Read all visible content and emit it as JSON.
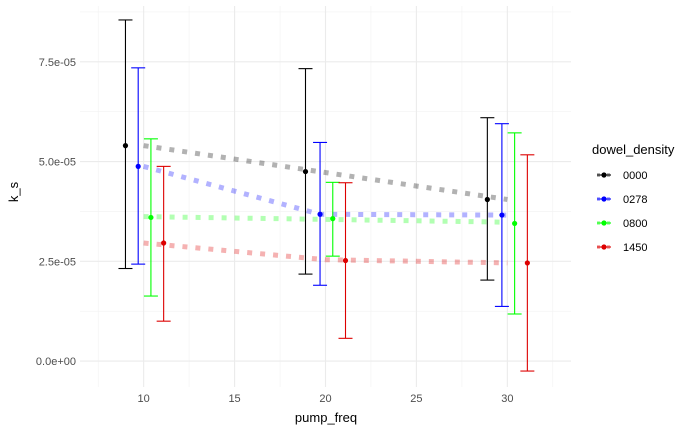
{
  "chart_data": {
    "type": "scatter",
    "xlabel": "pump_freq",
    "ylabel": "k_s",
    "xlim": [
      6.5,
      33.5
    ],
    "ylim": [
      -6.5e-06,
      8.9e-05
    ],
    "x_ticks": [
      10,
      15,
      20,
      25,
      30
    ],
    "x_tick_labels": [
      "10",
      "15",
      "20",
      "25",
      "30"
    ],
    "y_ticks": [
      0,
      2.5e-05,
      5e-05,
      7.5e-05
    ],
    "y_tick_labels": [
      "0.0e+00",
      "2.5e-05",
      "5.0e-05",
      "7.5e-05"
    ],
    "grid": true,
    "legend": {
      "title": "dowel_density",
      "position": "right"
    },
    "series": [
      {
        "name": "0000",
        "color": "#000000",
        "points": [
          {
            "x": 9,
            "y": 5.4e-05,
            "ymin": 2.32e-05,
            "ymax": 8.55e-05
          },
          {
            "x": 18.9,
            "y": 4.75e-05,
            "ymin": 2.18e-05,
            "ymax": 7.33e-05
          },
          {
            "x": 28.9,
            "y": 4.05e-05,
            "ymin": 2.03e-05,
            "ymax": 6.1e-05
          }
        ],
        "trend": [
          {
            "x": 10,
            "y": 5.4e-05
          },
          {
            "x": 30,
            "y": 4.05e-05
          }
        ]
      },
      {
        "name": "0278",
        "color": "#0000ff",
        "points": [
          {
            "x": 9.7,
            "y": 4.88e-05,
            "ymin": 2.43e-05,
            "ymax": 7.35e-05
          },
          {
            "x": 19.7,
            "y": 3.68e-05,
            "ymin": 1.9e-05,
            "ymax": 5.48e-05
          },
          {
            "x": 29.7,
            "y": 3.66e-05,
            "ymin": 1.37e-05,
            "ymax": 5.95e-05
          }
        ],
        "trend": [
          {
            "x": 10,
            "y": 4.88e-05
          },
          {
            "x": 19.7,
            "y": 3.68e-05
          },
          {
            "x": 30,
            "y": 3.66e-05
          }
        ]
      },
      {
        "name": "0800",
        "color": "#00ff00",
        "points": [
          {
            "x": 10.4,
            "y": 3.6e-05,
            "ymin": 1.63e-05,
            "ymax": 5.57e-05
          },
          {
            "x": 20.4,
            "y": 3.57e-05,
            "ymin": 2.63e-05,
            "ymax": 4.48e-05
          },
          {
            "x": 30.4,
            "y": 3.45e-05,
            "ymin": 1.18e-05,
            "ymax": 5.72e-05
          }
        ],
        "trend": [
          {
            "x": 10,
            "y": 3.62e-05
          },
          {
            "x": 30,
            "y": 3.48e-05
          }
        ]
      },
      {
        "name": "1450",
        "color": "#dd0000",
        "points": [
          {
            "x": 11.1,
            "y": 2.96e-05,
            "ymin": 1e-05,
            "ymax": 4.88e-05
          },
          {
            "x": 21.1,
            "y": 2.52e-05,
            "ymin": 5.7e-06,
            "ymax": 4.47e-05
          },
          {
            "x": 31.1,
            "y": 2.46e-05,
            "ymin": -2.5e-06,
            "ymax": 5.17e-05
          }
        ],
        "trend": [
          {
            "x": 10,
            "y": 2.96e-05
          },
          {
            "x": 20,
            "y": 2.54e-05
          },
          {
            "x": 30,
            "y": 2.46e-05
          }
        ]
      }
    ]
  }
}
